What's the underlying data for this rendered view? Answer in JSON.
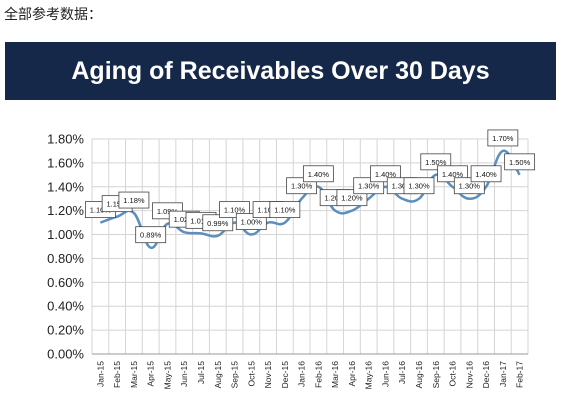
{
  "caption": "全部参考数据：",
  "chart_data": {
    "type": "line",
    "title": "Aging of Receivables Over 30 Days",
    "categories": [
      "Jan-15",
      "Feb-15",
      "Mar-15",
      "Apr-15",
      "May-15",
      "Jun-15",
      "Jul-15",
      "Aug-15",
      "Sep-15",
      "Oct-15",
      "Nov-15",
      "Dec-15",
      "Jan-16",
      "Feb-16",
      "Mar-16",
      "Apr-16",
      "May-16",
      "Jun-16",
      "Jul-16",
      "Aug-16",
      "Sep-16",
      "Oct-16",
      "Nov-16",
      "Dec-16",
      "Jan-17",
      "Feb-17"
    ],
    "values": [
      1.1,
      1.15,
      1.18,
      0.89,
      1.09,
      1.02,
      1.01,
      0.99,
      1.1,
      1.0,
      1.1,
      1.1,
      1.3,
      1.4,
      1.2,
      1.2,
      1.3,
      1.4,
      1.3,
      1.3,
      1.5,
      1.4,
      1.3,
      1.4,
      1.7,
      1.5
    ],
    "data_labels": [
      "1.10%",
      "1.15%",
      "1.18%",
      "0.89%",
      "1.09%",
      "1.02%",
      "1.01%",
      "0.99%",
      "1.10%",
      "1.00%",
      "1.10%",
      "1.10%",
      "1.30%",
      "1.40%",
      "1.20%",
      "1.20%",
      "1.30%",
      "1.40%",
      "1.30%",
      "1.30%",
      "1.50%",
      "1.40%",
      "1.30%",
      "1.40%",
      "1.70%",
      "1.50%"
    ],
    "y_ticks": [
      "0.00%",
      "0.20%",
      "0.40%",
      "0.60%",
      "0.80%",
      "1.00%",
      "1.20%",
      "1.40%",
      "1.60%",
      "1.80%"
    ],
    "ylim": [
      0,
      1.8
    ],
    "grid": true,
    "line_color": "#5b8fbf"
  }
}
